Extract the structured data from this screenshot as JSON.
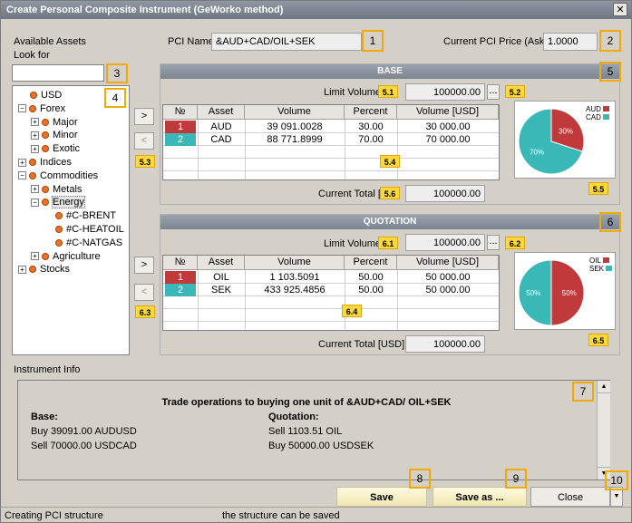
{
  "window": {
    "title": "Create Personal Composite Instrument (GeWorko method)",
    "close_glyph": "✕"
  },
  "available_assets_label": "Available Assets",
  "look_for_label": "Look for",
  "look_for_value": "",
  "pci_name_label": "PCI Name:",
  "pci_name_value": "&AUD+CAD/OIL+SEK",
  "current_price_label": "Current PCI Price (Ask):",
  "current_price_value": "1.0000",
  "tree": [
    {
      "label": "USD",
      "level": 0,
      "expander": ""
    },
    {
      "label": "Forex",
      "level": 0,
      "expander": "−"
    },
    {
      "label": "Major",
      "level": 1,
      "expander": "+"
    },
    {
      "label": "Minor",
      "level": 1,
      "expander": "+"
    },
    {
      "label": "Exotic",
      "level": 1,
      "expander": "+"
    },
    {
      "label": "Indices",
      "level": 0,
      "expander": "+"
    },
    {
      "label": "Commodities",
      "level": 0,
      "expander": "−"
    },
    {
      "label": "Metals",
      "level": 1,
      "expander": "+"
    },
    {
      "label": "Energy",
      "level": 1,
      "expander": "−"
    },
    {
      "label": "#C-BRENT",
      "level": 2,
      "expander": ""
    },
    {
      "label": "#C-HEATOIL",
      "level": 2,
      "expander": ""
    },
    {
      "label": "#C-NATGAS",
      "level": 2,
      "expander": ""
    },
    {
      "label": "Agriculture",
      "level": 1,
      "expander": "+"
    },
    {
      "label": "Stocks",
      "level": 0,
      "expander": "+"
    }
  ],
  "move_right_glyph": ">",
  "move_left_glyph": "<",
  "ellipsis_glyph": "...",
  "base": {
    "title": "BASE",
    "limit_label": "Limit Volume [",
    "limit_value": "100000.00",
    "columns": [
      "№",
      "Asset",
      "Volume",
      "Percent",
      "Volume [USD]"
    ],
    "rows": [
      {
        "n": "1",
        "asset": "AUD",
        "volume": "39 091.0028",
        "percent": "30.00",
        "volume_usd": "30 000.00",
        "color": "#c0393b"
      },
      {
        "n": "2",
        "asset": "CAD",
        "volume": "88 771.8999",
        "percent": "70.00",
        "volume_usd": "70 000.00",
        "color": "#3ab8b8"
      }
    ],
    "total_label": "Current Total [",
    "total_value": "100000.00",
    "pie": {
      "legend": [
        "AUD",
        "CAD"
      ],
      "slices": [
        30,
        70
      ],
      "slice_labels": [
        "30%",
        "70%"
      ],
      "colors": [
        "#c0393b",
        "#3ab8b8"
      ]
    }
  },
  "quotation": {
    "title": "QUOTATION",
    "limit_label": "Limit Volume [",
    "limit_value": "100000.00",
    "columns": [
      "№",
      "Asset",
      "Volume",
      "Percent",
      "Volume [USD]"
    ],
    "rows": [
      {
        "n": "1",
        "asset": "OIL",
        "volume": "1 103.5091",
        "percent": "50.00",
        "volume_usd": "50 000.00",
        "color": "#c0393b"
      },
      {
        "n": "2",
        "asset": "SEK",
        "volume": "433 925.4856",
        "percent": "50.00",
        "volume_usd": "50 000.00",
        "color": "#3ab8b8"
      }
    ],
    "total_label": "Current Total [USD]",
    "total_value": "100000.00",
    "pie": {
      "legend": [
        "OIL",
        "SEK"
      ],
      "slices": [
        50,
        50
      ],
      "slice_labels": [
        "50%",
        "50%"
      ],
      "colors": [
        "#c0393b",
        "#3ab8b8"
      ]
    }
  },
  "instrument_info_label": "Instrument Info",
  "info": {
    "heading": "Trade operations to buying one unit of &AUD+CAD/ OIL+SEK",
    "base_label": "Base:",
    "base_lines": [
      "Buy 39091.00 AUDUSD",
      "Sell 70000.00 USDCAD"
    ],
    "quotation_label": "Quotation:",
    "quotation_lines": [
      "Sell 1103.51 OIL",
      "Buy 50000.00 USDSEK"
    ]
  },
  "buttons": {
    "save": "Save",
    "save_as": "Save as ...",
    "close": "Close"
  },
  "status": {
    "left": "Creating PCI structure",
    "right": "the structure can be saved"
  },
  "markers": {
    "m1": "1",
    "m2": "2",
    "m3": "3",
    "m4": "4",
    "m5": "5",
    "m6": "6",
    "m7": "7",
    "m8": "8",
    "m9": "9",
    "m10": "10",
    "m51": "5.1",
    "m52": "5.2",
    "m53": "5.3",
    "m54": "5.4",
    "m55": "5.5",
    "m56": "5.6",
    "m61": "6.1",
    "m62": "6.2",
    "m63": "6.3",
    "m64": "6.4",
    "m65": "6.5"
  },
  "colors": {
    "accent_marker": "#ffd83a",
    "marker_border": "#f2a900",
    "row_red": "#c0393b",
    "row_teal": "#3ab8b8"
  }
}
